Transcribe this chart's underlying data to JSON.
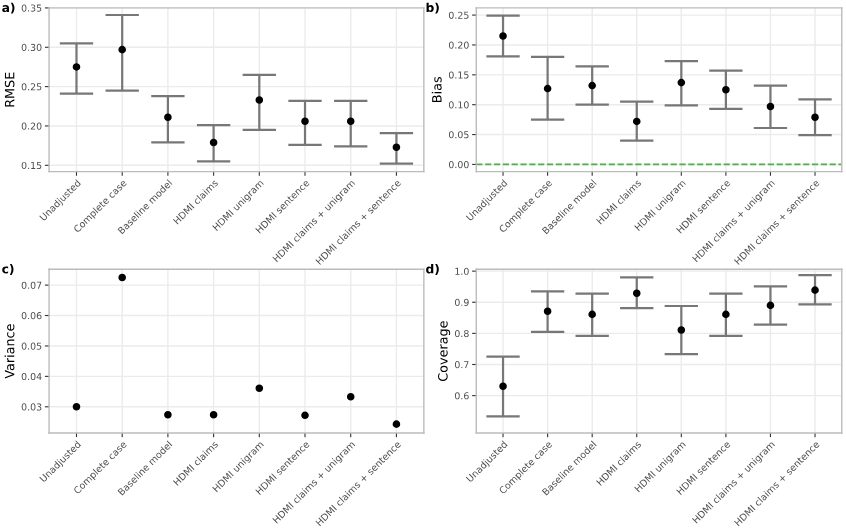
{
  "chart_data": [
    {
      "type": "scatter",
      "title": "a)",
      "ylabel": "RMSE",
      "categories": [
        "Unadjusted",
        "Complete case",
        "Baseline model",
        "HDMI claims",
        "HDMI unigram",
        "HDMI sentence",
        "HDMI claims + unigram",
        "HDMI claims + sentence"
      ],
      "values": [
        0.275,
        0.297,
        0.211,
        0.179,
        0.233,
        0.206,
        0.206,
        0.173
      ],
      "errors": [
        [
          0.241,
          0.305
        ],
        [
          0.245,
          0.341
        ],
        [
          0.179,
          0.238
        ],
        [
          0.155,
          0.201
        ],
        [
          0.195,
          0.265
        ],
        [
          0.176,
          0.232
        ],
        [
          0.174,
          0.232
        ],
        [
          0.152,
          0.191
        ]
      ],
      "color": "#000000",
      "ylim": [
        0.142,
        0.35
      ],
      "yticks": [
        {
          "value": 0.15,
          "label": "0.15"
        },
        {
          "value": 0.2,
          "label": "0.20"
        },
        {
          "value": 0.25,
          "label": "0.25"
        },
        {
          "value": 0.3,
          "label": "0.30"
        },
        {
          "value": 0.35,
          "label": "0.35"
        }
      ],
      "grid": true,
      "marker": "circle"
    },
    {
      "type": "scatter",
      "title": "b)",
      "ylabel": "Bias",
      "categories": [
        "Unadjusted",
        "Complete case",
        "Baseline model",
        "HDMI claims",
        "HDMI unigram",
        "HDMI sentence",
        "HDMI claims + unigram",
        "HDMI claims + sentence"
      ],
      "values": [
        0.215,
        0.127,
        0.132,
        0.072,
        0.137,
        0.125,
        0.097,
        0.079
      ],
      "errors": [
        [
          0.181,
          0.249
        ],
        [
          0.075,
          0.18
        ],
        [
          0.1,
          0.164
        ],
        [
          0.04,
          0.105
        ],
        [
          0.099,
          0.173
        ],
        [
          0.093,
          0.157
        ],
        [
          0.061,
          0.132
        ],
        [
          0.049,
          0.109
        ]
      ],
      "color": "#000000",
      "ylim": [
        -0.012,
        0.262
      ],
      "yticks": [
        {
          "value": 0,
          "label": "0.00"
        },
        {
          "value": 0.05,
          "label": "0.05"
        },
        {
          "value": 0.1,
          "label": "0.10"
        },
        {
          "value": 0.15,
          "label": "0.15"
        },
        {
          "value": 0.2,
          "label": "0.20"
        },
        {
          "value": 0.25,
          "label": "0.25"
        }
      ],
      "grid": true,
      "marker": "circle",
      "ref_lines": [
        {
          "axis": "y",
          "value": 0,
          "color": "#4daf4a",
          "line_style": "dashed"
        }
      ]
    },
    {
      "type": "scatter",
      "title": "c)",
      "ylabel": "Variance",
      "categories": [
        "Unadjusted",
        "Complete case",
        "Baseline model",
        "HDMI claims",
        "HDMI unigram",
        "HDMI sentence",
        "HDMI claims + unigram",
        "HDMI claims + sentence"
      ],
      "values": [
        0.03,
        0.0725,
        0.0274,
        0.0274,
        0.0361,
        0.0272,
        0.0333,
        0.0243
      ],
      "color": "#000000",
      "ylim": [
        0.0214,
        0.0752
      ],
      "yticks": [
        0.03,
        0.04,
        0.05,
        0.06,
        0.07
      ],
      "grid": true,
      "marker": "circle"
    },
    {
      "type": "scatter",
      "title": "d)",
      "ylabel": "Coverage",
      "categories": [
        "Unadjusted",
        "Complete case",
        "Baseline model",
        "HDMI claims",
        "HDMI unigram",
        "HDMI sentence",
        "HDMI claims + unigram",
        "HDMI claims + sentence"
      ],
      "values": [
        0.63,
        0.871,
        0.861,
        0.929,
        0.811,
        0.861,
        0.89,
        0.939
      ],
      "errors": [
        [
          0.533,
          0.725
        ],
        [
          0.805,
          0.935
        ],
        [
          0.792,
          0.928
        ],
        [
          0.881,
          0.98
        ],
        [
          0.733,
          0.888
        ],
        [
          0.792,
          0.928
        ],
        [
          0.828,
          0.951
        ],
        [
          0.893,
          0.987
        ]
      ],
      "color": "#000000",
      "ylim": [
        0.48,
        1.006
      ],
      "yticks": [
        {
          "value": 0.6,
          "label": "0.6"
        },
        {
          "value": 0.7,
          "label": "0.7"
        },
        {
          "value": 0.8,
          "label": "0.8"
        },
        {
          "value": 0.9,
          "label": "0.9"
        },
        {
          "value": 1.0,
          "label": "1.0"
        }
      ],
      "grid": true,
      "marker": "circle"
    }
  ]
}
